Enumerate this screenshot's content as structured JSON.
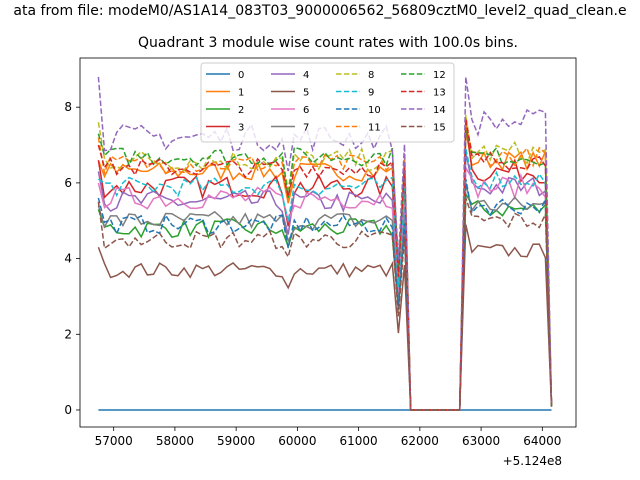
{
  "suptitle": "ata from file: modeM0/AS1A14_083T03_9000006562_56809cztM0_level2_quad_clean.e",
  "chart_data": {
    "type": "line",
    "title": "Quadrant 3 module wise count rates with 100.0s bins.",
    "xlabel": "",
    "ylabel": "",
    "x_offset_label": "+5.124e8",
    "xlim": [
      56450,
      64550
    ],
    "ylim": [
      -0.45,
      9.3
    ],
    "xticks": [
      57000,
      58000,
      59000,
      60000,
      61000,
      62000,
      63000,
      64000
    ],
    "xtick_labels": [
      "57000",
      "58000",
      "59000",
      "60000",
      "61000",
      "62000",
      "63000",
      "64000"
    ],
    "yticks": [
      0,
      2,
      4,
      6,
      8
    ],
    "ytick_labels": [
      "0",
      "2",
      "4",
      "6",
      "8"
    ],
    "grid": false,
    "legend_position": "top-center",
    "legend_columns": 4,
    "x_start": 56750,
    "x_step": 100,
    "x_end": 64150,
    "gap_start": 61850,
    "gap_end": 62650,
    "series": [
      {
        "name": "0",
        "color": "#1f77b4",
        "style": "solid",
        "base1": 0.0,
        "base2": 0.0,
        "first": 0.0,
        "peak": 0.0,
        "noise": 0.0
      },
      {
        "name": "1",
        "color": "#ff7f0e",
        "style": "solid",
        "base1": 6.3,
        "base2": 6.6,
        "first": 6.6,
        "peak": 7.4,
        "noise": 0.25
      },
      {
        "name": "2",
        "color": "#2ca02c",
        "style": "solid",
        "base1": 4.8,
        "base2": 5.3,
        "first": 5.3,
        "peak": 5.7,
        "noise": 0.25
      },
      {
        "name": "3",
        "color": "#d62728",
        "style": "solid",
        "base1": 5.9,
        "base2": 6.3,
        "first": 6.6,
        "peak": 7.6,
        "noise": 0.3
      },
      {
        "name": "4",
        "color": "#9467bd",
        "style": "solid",
        "base1": 5.5,
        "base2": 5.9,
        "first": 6.3,
        "peak": 6.8,
        "noise": 0.3
      },
      {
        "name": "5",
        "color": "#8c564b",
        "style": "solid",
        "base1": 3.7,
        "base2": 4.2,
        "first": 4.3,
        "peak": 4.9,
        "noise": 0.2
      },
      {
        "name": "6",
        "color": "#e377c2",
        "style": "solid",
        "base1": 5.6,
        "base2": 5.9,
        "first": 6.0,
        "peak": 6.4,
        "noise": 0.3
      },
      {
        "name": "7",
        "color": "#7f7f7f",
        "style": "solid",
        "base1": 5.0,
        "base2": 5.4,
        "first": 5.4,
        "peak": 6.0,
        "noise": 0.25
      },
      {
        "name": "8",
        "color": "#bcbd22",
        "style": "dashed",
        "base1": 6.6,
        "base2": 6.8,
        "first": 7.6,
        "peak": 7.8,
        "noise": 0.3
      },
      {
        "name": "9",
        "color": "#17becf",
        "style": "dashed",
        "base1": 5.9,
        "base2": 6.1,
        "first": 6.1,
        "peak": 6.9,
        "noise": 0.25
      },
      {
        "name": "10",
        "color": "#1f77b4",
        "style": "dashed",
        "base1": 4.9,
        "base2": 5.4,
        "first": 5.6,
        "peak": 6.1,
        "noise": 0.25
      },
      {
        "name": "11",
        "color": "#ff7f0e",
        "style": "dashed",
        "base1": 6.5,
        "base2": 6.7,
        "first": 7.2,
        "peak": 7.6,
        "noise": 0.25
      },
      {
        "name": "12",
        "color": "#2ca02c",
        "style": "dashed",
        "base1": 6.7,
        "base2": 6.7,
        "first": 7.3,
        "peak": 7.4,
        "noise": 0.25
      },
      {
        "name": "13",
        "color": "#d62728",
        "style": "dashed",
        "base1": 6.4,
        "base2": 6.6,
        "first": 7.0,
        "peak": 7.7,
        "noise": 0.25
      },
      {
        "name": "14",
        "color": "#9467bd",
        "style": "dashed",
        "base1": 7.2,
        "base2": 7.6,
        "first": 8.8,
        "peak": 8.8,
        "noise": 0.35
      },
      {
        "name": "15",
        "color": "#8c564b",
        "style": "dashed",
        "base1": 4.5,
        "base2": 5.0,
        "first": 5.5,
        "peak": 5.6,
        "noise": 0.25
      }
    ]
  }
}
